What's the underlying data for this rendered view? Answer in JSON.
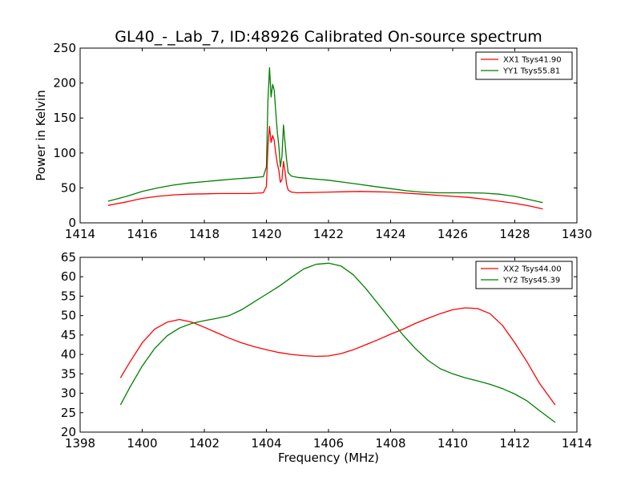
{
  "figure": {
    "title": "GL40_-_Lab_7, ID:48926 Calibrated On-source spectrum"
  },
  "colors": {
    "red": "#ff0000",
    "green": "#007f00"
  },
  "chart_data": [
    {
      "type": "line",
      "title": "GL40_-_Lab_7, ID:48926 Calibrated On-source spectrum",
      "xlabel": "",
      "ylabel": "Power in Kelvin",
      "xlim": [
        1414,
        1430
      ],
      "ylim": [
        0,
        250
      ],
      "xticks": [
        1414,
        1416,
        1418,
        1420,
        1422,
        1424,
        1426,
        1428,
        1430
      ],
      "yticks": [
        0,
        50,
        100,
        150,
        200,
        250
      ],
      "grid": false,
      "legend": "top-right",
      "series": [
        {
          "name": "XX1 Tsys41.90",
          "color": "#ff0000",
          "x": [
            1414.9,
            1415.5,
            1416.0,
            1416.5,
            1417.0,
            1417.5,
            1418.0,
            1418.5,
            1419.0,
            1419.5,
            1419.9,
            1420.0,
            1420.05,
            1420.1,
            1420.15,
            1420.2,
            1420.25,
            1420.3,
            1420.35,
            1420.4,
            1420.45,
            1420.5,
            1420.55,
            1420.6,
            1420.65,
            1420.7,
            1420.8,
            1421.0,
            1421.5,
            1422.0,
            1422.5,
            1423.0,
            1423.5,
            1424.0,
            1424.5,
            1425.0,
            1425.5,
            1426.0,
            1426.5,
            1427.0,
            1427.5,
            1428.0,
            1428.5,
            1428.9
          ],
          "y": [
            25,
            30,
            35,
            38,
            40,
            41,
            41.5,
            42,
            42,
            42,
            43,
            52,
            110,
            138,
            115,
            125,
            118,
            100,
            85,
            75,
            58,
            62,
            88,
            74,
            55,
            47,
            44,
            43,
            43.5,
            44,
            44.5,
            45,
            44.5,
            44,
            42.5,
            41,
            39.5,
            38,
            36.5,
            34,
            31,
            28,
            24,
            20
          ]
        },
        {
          "name": "YY1 Tsys55.81",
          "color": "#007f00",
          "x": [
            1414.9,
            1415.5,
            1416.0,
            1416.5,
            1417.0,
            1417.5,
            1418.0,
            1418.5,
            1419.0,
            1419.5,
            1419.9,
            1420.0,
            1420.05,
            1420.1,
            1420.15,
            1420.2,
            1420.25,
            1420.3,
            1420.35,
            1420.4,
            1420.45,
            1420.5,
            1420.55,
            1420.6,
            1420.65,
            1420.7,
            1420.8,
            1421.0,
            1421.5,
            1422.0,
            1422.5,
            1423.0,
            1423.5,
            1424.0,
            1424.5,
            1425.0,
            1425.5,
            1426.0,
            1426.5,
            1427.0,
            1427.5,
            1428.0,
            1428.5,
            1428.9
          ],
          "y": [
            31,
            38,
            45,
            50,
            54,
            57,
            59,
            61,
            63,
            64.5,
            66,
            80,
            175,
            222,
            180,
            198,
            190,
            160,
            130,
            110,
            80,
            95,
            140,
            115,
            90,
            72,
            67,
            65,
            63,
            61,
            58,
            55,
            52,
            49,
            46,
            44,
            43,
            43,
            43,
            42.5,
            41,
            38,
            33,
            29
          ]
        }
      ]
    },
    {
      "type": "line",
      "title": "",
      "xlabel": "Frequency (MHz)",
      "ylabel": "",
      "xlim": [
        1398,
        1414
      ],
      "ylim": [
        20,
        65
      ],
      "xticks": [
        1398,
        1400,
        1402,
        1404,
        1406,
        1408,
        1410,
        1412,
        1414
      ],
      "yticks": [
        20,
        25,
        30,
        35,
        40,
        45,
        50,
        55,
        60,
        65
      ],
      "grid": false,
      "legend": "top-right",
      "series": [
        {
          "name": "XX2 Tsys44.00",
          "color": "#ff0000",
          "x": [
            1399.3,
            1399.6,
            1400.0,
            1400.4,
            1400.8,
            1401.2,
            1401.6,
            1402.0,
            1402.4,
            1402.8,
            1403.2,
            1403.6,
            1404.0,
            1404.4,
            1404.8,
            1405.2,
            1405.6,
            1406.0,
            1406.4,
            1406.8,
            1407.2,
            1407.6,
            1408.0,
            1408.4,
            1408.8,
            1409.2,
            1409.6,
            1410.0,
            1410.4,
            1410.8,
            1411.2,
            1411.6,
            1412.0,
            1412.4,
            1412.8,
            1413.3
          ],
          "y": [
            34,
            38,
            43,
            46.5,
            48.3,
            49,
            48.3,
            47,
            45.6,
            44.2,
            43,
            42,
            41.2,
            40.5,
            40,
            39.7,
            39.5,
            39.6,
            40.2,
            41.2,
            42.5,
            43.8,
            45.2,
            46.5,
            48,
            49.3,
            50.5,
            51.5,
            52,
            51.8,
            50.5,
            47.5,
            43,
            38,
            32.5,
            27
          ]
        },
        {
          "name": "YY2 Tsys45.39",
          "color": "#007f00",
          "x": [
            1399.3,
            1399.6,
            1400.0,
            1400.4,
            1400.8,
            1401.2,
            1401.6,
            1402.0,
            1402.4,
            1402.8,
            1403.2,
            1403.6,
            1404.0,
            1404.4,
            1404.8,
            1405.2,
            1405.6,
            1406.0,
            1406.4,
            1406.8,
            1407.2,
            1407.6,
            1408.0,
            1408.4,
            1408.8,
            1409.2,
            1409.6,
            1410.0,
            1410.4,
            1410.8,
            1411.2,
            1411.6,
            1412.0,
            1412.4,
            1412.8,
            1413.3
          ],
          "y": [
            27,
            31.5,
            37,
            41.5,
            44.8,
            46.8,
            48,
            48.7,
            49.3,
            50,
            51.5,
            53.5,
            55.5,
            57.5,
            59.8,
            62,
            63.2,
            63.5,
            62.8,
            60.5,
            57,
            53,
            49,
            45,
            41.5,
            38.5,
            36.3,
            35,
            34,
            33.2,
            32.3,
            31.2,
            29.8,
            28,
            25.5,
            22.5
          ]
        }
      ]
    }
  ]
}
